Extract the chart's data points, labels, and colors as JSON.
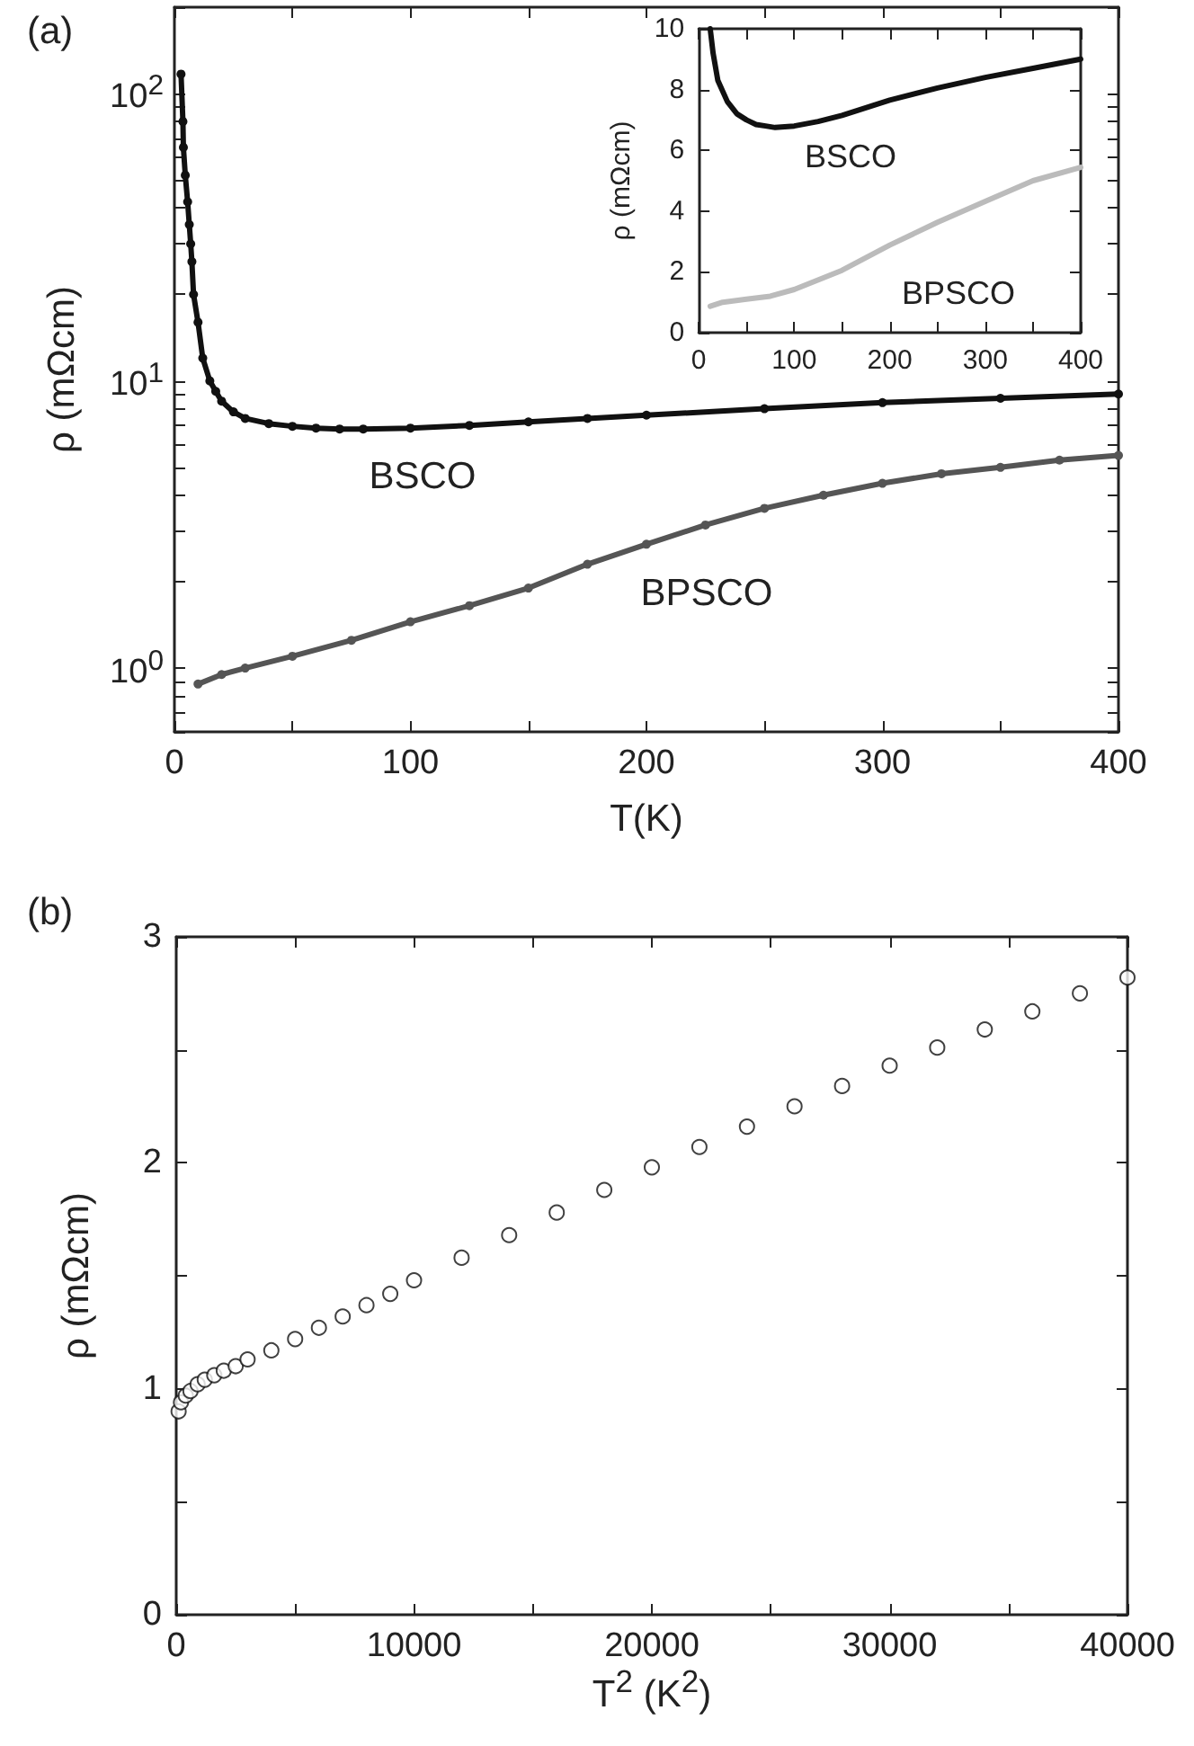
{
  "chart_data": [
    {
      "type": "line",
      "title": "(a)",
      "xlabel": "T(K)",
      "ylabel": "ρ (mΩcm)",
      "log": "y",
      "marker": "circle",
      "xlim": [
        0,
        400
      ],
      "xticks": [
        0,
        {
          "value": 50,
          "label": null
        },
        100,
        {
          "value": 150,
          "label": null
        },
        200,
        {
          "value": 250,
          "label": null
        },
        300,
        {
          "value": 350,
          "label": null
        },
        400
      ],
      "ylim": [
        0.6,
        200
      ],
      "yticks": [
        {
          "value": 0.6,
          "label": null
        },
        {
          "value": 0.7,
          "label": null
        },
        {
          "value": 0.8,
          "label": null
        },
        {
          "value": 0.9,
          "label": null
        },
        {
          "value": 1,
          "label": "10$^{0}$"
        },
        {
          "value": 2,
          "label": null
        },
        {
          "value": 3,
          "label": null
        },
        {
          "value": 4,
          "label": null
        },
        {
          "value": 5,
          "label": null
        },
        {
          "value": 6,
          "label": null
        },
        {
          "value": 7,
          "label": null
        },
        {
          "value": 8,
          "label": null
        },
        {
          "value": 9,
          "label": null
        },
        {
          "value": 10,
          "label": "10$^{1}$"
        },
        {
          "value": 20,
          "label": null
        },
        {
          "value": 30,
          "label": null
        },
        {
          "value": 40,
          "label": null
        },
        {
          "value": 50,
          "label": null
        },
        {
          "value": 60,
          "label": null
        },
        {
          "value": 70,
          "label": null
        },
        {
          "value": 80,
          "label": null
        },
        {
          "value": 90,
          "label": null
        },
        {
          "value": 100,
          "label": "10$^{2}$"
        },
        {
          "value": 200,
          "label": null
        }
      ],
      "series": [
        {
          "name": "BSCO",
          "color": "#111111",
          "x": [
            2.8,
            3.6,
            3.8,
            4.6,
            5.6,
            6.3,
            6.9,
            7.4,
            8.1,
            10,
            12,
            15,
            17.5,
            20,
            25,
            30,
            40,
            50,
            60,
            70,
            80,
            100,
            125,
            150,
            175,
            200,
            250,
            300,
            350,
            400
          ],
          "values": [
            117,
            80,
            65,
            52,
            42,
            35,
            30,
            26,
            20,
            16,
            12,
            10,
            9.2,
            8.5,
            7.8,
            7.4,
            7.1,
            6.95,
            6.85,
            6.8,
            6.8,
            6.85,
            7.0,
            7.2,
            7.4,
            7.6,
            8.0,
            8.4,
            8.7,
            9.0
          ]
        },
        {
          "name": "BPSCO",
          "color": "#555555",
          "x": [
            10,
            20,
            30,
            50,
            75,
            100,
            125,
            150,
            175,
            200,
            225,
            250,
            275,
            300,
            325,
            350,
            375,
            400
          ],
          "values": [
            0.88,
            0.95,
            1.0,
            1.1,
            1.25,
            1.45,
            1.65,
            1.9,
            2.3,
            2.7,
            3.15,
            3.6,
            4.0,
            4.4,
            4.75,
            5.0,
            5.3,
            5.5
          ]
        }
      ]
    },
    {
      "type": "line",
      "ylabel": "ρ (mΩcm)",
      "marker": "none",
      "xlim": [
        0,
        400
      ],
      "xticks": [
        0,
        {
          "value": 50,
          "label": null
        },
        100,
        {
          "value": 150,
          "label": null
        },
        200,
        {
          "value": 250,
          "label": null
        },
        300,
        {
          "value": 350,
          "label": null
        },
        400
      ],
      "ylim": [
        0,
        10
      ],
      "yticks": [
        0,
        2,
        4,
        6,
        8,
        10
      ],
      "series": [
        {
          "name": "BSCO",
          "color": "#111111",
          "x": [
            12,
            15,
            20,
            30,
            40,
            50,
            60,
            70,
            80,
            100,
            125,
            150,
            200,
            250,
            300,
            350,
            400
          ],
          "values": [
            10,
            9.2,
            8.3,
            7.6,
            7.2,
            7.0,
            6.85,
            6.8,
            6.75,
            6.8,
            6.95,
            7.15,
            7.65,
            8.05,
            8.4,
            8.7,
            9.0
          ]
        },
        {
          "name": "BPSCO",
          "color": "#bbbbbb",
          "x": [
            12,
            25,
            50,
            75,
            100,
            150,
            200,
            250,
            300,
            350,
            400
          ],
          "values": [
            0.87,
            1.0,
            1.1,
            1.2,
            1.42,
            2.05,
            2.88,
            3.63,
            4.32,
            5.0,
            5.44
          ]
        }
      ]
    },
    {
      "type": "scatter",
      "title": "(b)",
      "xlabel": "T$^{2}$ (K$^{2}$)",
      "ylabel": "ρ (mΩcm)",
      "marker": "circle",
      "xlim": [
        0,
        40000
      ],
      "xticks": [
        0,
        {
          "value": 5000,
          "label": null
        },
        10000,
        {
          "value": 15000,
          "label": null
        },
        20000,
        {
          "value": 25000,
          "label": null
        },
        30000,
        {
          "value": 35000,
          "label": null
        },
        40000
      ],
      "ylim": [
        0,
        3
      ],
      "yticks": [
        0,
        {
          "value": 0.5,
          "label": null
        },
        1,
        {
          "value": 1.5,
          "label": null
        },
        2,
        {
          "value": 2.5,
          "label": null
        },
        3
      ],
      "series": [
        {
          "color": "#111111",
          "x": [
            100,
            200,
            400,
            600,
            900,
            1200,
            1600,
            2000,
            2500,
            3000,
            4000,
            5000,
            6000,
            7000,
            8000,
            9000,
            10000,
            12000,
            14000,
            16000,
            18000,
            20000,
            22000,
            24000,
            26000,
            28000,
            30000,
            32000,
            34000,
            36000,
            38000,
            40000
          ],
          "values": [
            0.9,
            0.94,
            0.97,
            0.99,
            1.02,
            1.04,
            1.06,
            1.08,
            1.1,
            1.13,
            1.17,
            1.22,
            1.27,
            1.32,
            1.37,
            1.42,
            1.48,
            1.58,
            1.68,
            1.78,
            1.88,
            1.98,
            2.07,
            2.16,
            2.25,
            2.34,
            2.43,
            2.51,
            2.59,
            2.67,
            2.75,
            2.82
          ]
        }
      ]
    }
  ]
}
